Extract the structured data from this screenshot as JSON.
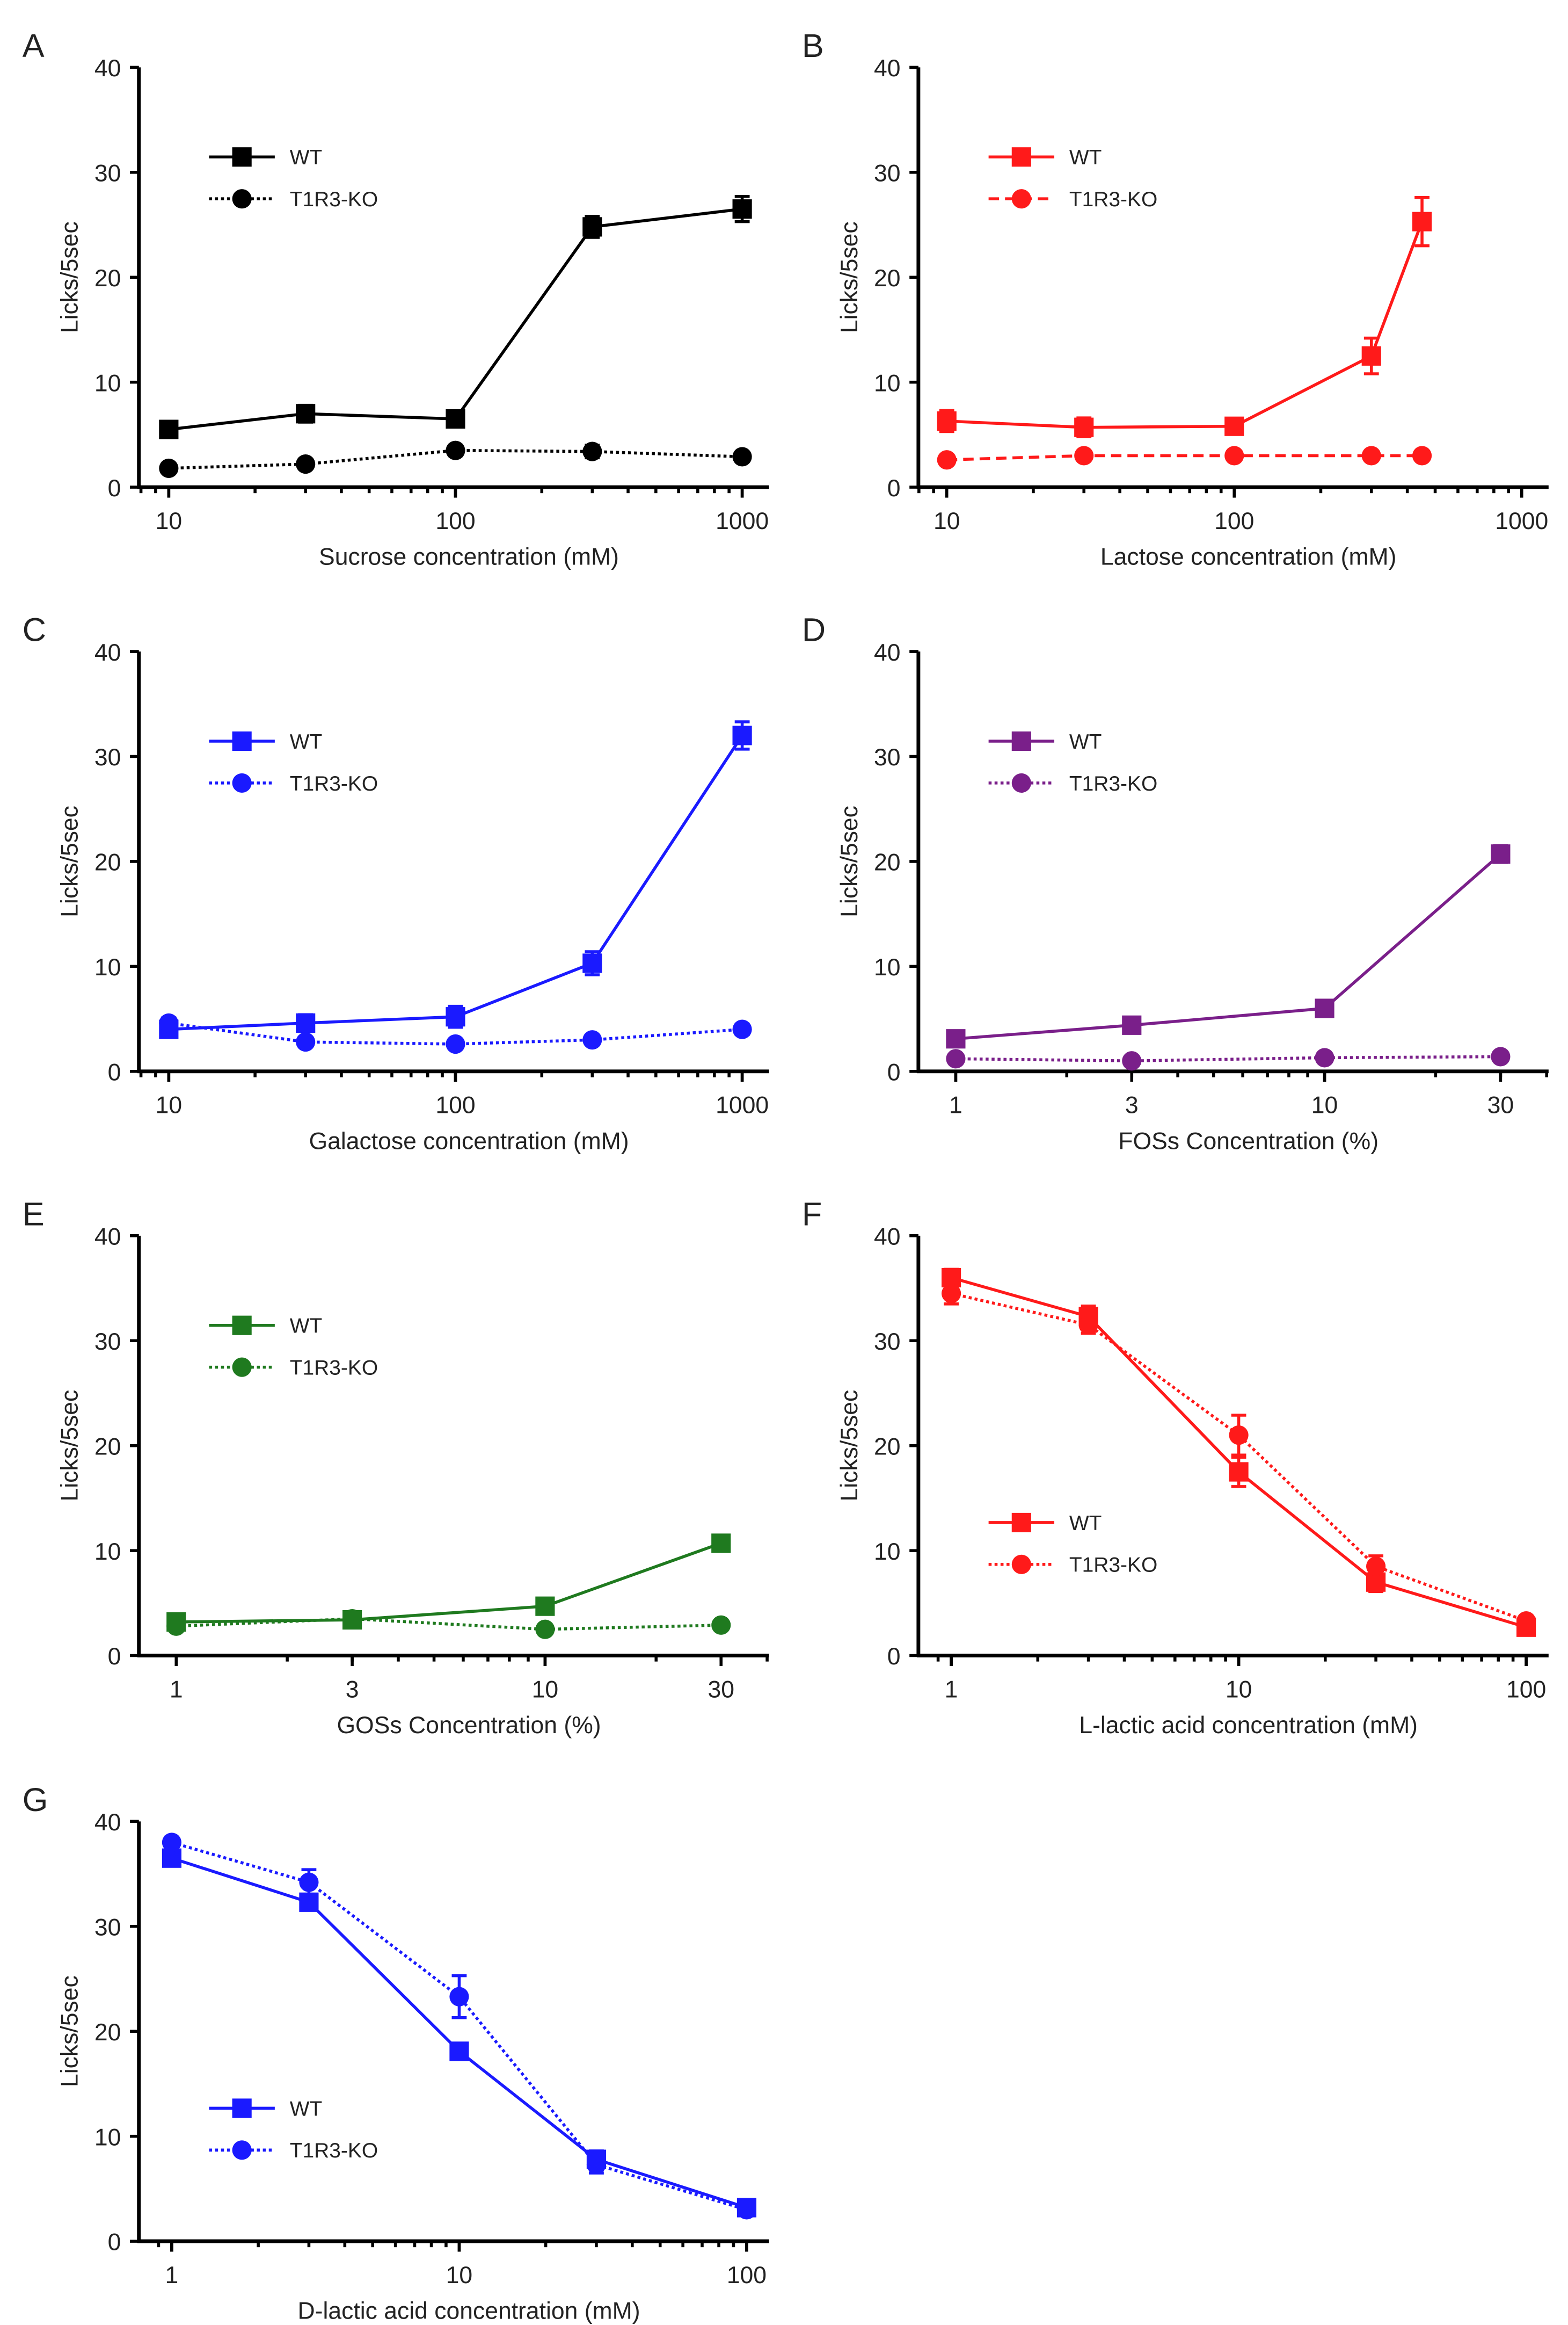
{
  "chart_data": [
    {
      "type": "line",
      "letter": "A",
      "color": "#000000",
      "ko_style": "dotted",
      "xscale": "log",
      "xlim": [
        8,
        1200
      ],
      "ylim": [
        0,
        40
      ],
      "xticks": [
        10,
        100,
        1000
      ],
      "xtick_labels": [
        "10",
        "100",
        "1000"
      ],
      "yticks": [
        0,
        10,
        20,
        30,
        40
      ],
      "ytick_labels": [
        "0",
        "10",
        "20",
        "30",
        "40"
      ],
      "xlabel": "Sucrose concentration (mM)",
      "ylabel": "Licks/5sec",
      "legend": "upper-left",
      "x": [
        10,
        30,
        100,
        300,
        1000
      ],
      "series": [
        {
          "name": "WT",
          "marker": "square",
          "values": [
            5.5,
            7.0,
            6.5,
            24.8,
            26.5
          ],
          "err": [
            0.5,
            0.8,
            0.6,
            1.0,
            1.2
          ]
        },
        {
          "name": "T1R3-KO",
          "marker": "circle",
          "values": [
            1.8,
            2.2,
            3.5,
            3.4,
            2.9
          ],
          "err": [
            0.3,
            0.3,
            0.5,
            0.6,
            0.3
          ]
        }
      ]
    },
    {
      "type": "line",
      "letter": "B",
      "color": "#ff1a1a",
      "ko_style": "dashed",
      "xscale": "log",
      "xlim": [
        8,
        1200
      ],
      "ylim": [
        0,
        40
      ],
      "xticks": [
        10,
        100,
        1000
      ],
      "xtick_labels": [
        "10",
        "100",
        "1000"
      ],
      "yticks": [
        0,
        10,
        20,
        30,
        40
      ],
      "ytick_labels": [
        "0",
        "10",
        "20",
        "30",
        "40"
      ],
      "xlabel": "Lactose concentration (mM)",
      "ylabel": "Licks/5sec",
      "legend": "upper-left",
      "x": [
        10,
        30,
        100,
        300,
        450
      ],
      "series": [
        {
          "name": "WT",
          "marker": "square",
          "values": [
            6.3,
            5.7,
            5.8,
            12.5,
            25.3
          ],
          "err": [
            1.0,
            0.9,
            0.6,
            1.7,
            2.3
          ]
        },
        {
          "name": "T1R3-KO",
          "marker": "circle",
          "values": [
            2.6,
            3.0,
            3.0,
            3.0,
            3.0
          ],
          "err": [
            0.3,
            0.3,
            0.3,
            0.3,
            0.3
          ]
        }
      ]
    },
    {
      "type": "line",
      "letter": "C",
      "color": "#1a1aff",
      "ko_style": "dotted",
      "xscale": "log",
      "xlim": [
        8,
        1200
      ],
      "ylim": [
        0,
        40
      ],
      "xticks": [
        10,
        100,
        1000
      ],
      "xtick_labels": [
        "10",
        "100",
        "1000"
      ],
      "yticks": [
        0,
        10,
        20,
        30,
        40
      ],
      "ytick_labels": [
        "0",
        "10",
        "20",
        "30",
        "40"
      ],
      "xlabel": "Galactose concentration (mM)",
      "ylabel": "Licks/5sec",
      "legend": "upper-left",
      "x": [
        10,
        30,
        100,
        300,
        1000
      ],
      "series": [
        {
          "name": "WT",
          "marker": "square",
          "values": [
            4.0,
            4.6,
            5.2,
            10.3,
            32.0
          ],
          "err": [
            0.6,
            0.8,
            1.0,
            1.1,
            1.3
          ]
        },
        {
          "name": "T1R3-KO",
          "marker": "circle",
          "values": [
            4.6,
            2.8,
            2.6,
            3.0,
            4.0
          ],
          "err": [
            0.5,
            0.4,
            0.4,
            0.4,
            0.5
          ]
        }
      ]
    },
    {
      "type": "line",
      "letter": "D",
      "color": "#7a1f8a",
      "ko_style": "dotted",
      "xscale": "log",
      "xlim": [
        0.92,
        40
      ],
      "ylim": [
        0,
        40
      ],
      "xticks": [
        1,
        3,
        10,
        30
      ],
      "xtick_labels": [
        "1",
        "3",
        "10",
        "30"
      ],
      "yticks": [
        0,
        10,
        20,
        30,
        40
      ],
      "ytick_labels": [
        "0",
        "10",
        "20",
        "30",
        "40"
      ],
      "xlabel": "FOSs Concentration (%)",
      "ylabel": "Licks/5sec",
      "legend": "upper-left",
      "x": [
        1,
        3,
        10,
        30
      ],
      "series": [
        {
          "name": "WT",
          "marker": "square",
          "values": [
            3.1,
            4.4,
            6.0,
            20.7
          ],
          "err": [
            0.4,
            0.4,
            0.5,
            0.8
          ]
        },
        {
          "name": "T1R3-KO",
          "marker": "circle",
          "values": [
            1.2,
            1.0,
            1.3,
            1.4
          ],
          "err": [
            0.2,
            0.2,
            0.2,
            0.2
          ]
        }
      ]
    },
    {
      "type": "line",
      "letter": "E",
      "color": "#1f7a1f",
      "ko_style": "dotted",
      "xscale": "log",
      "xlim": [
        0.92,
        40
      ],
      "ylim": [
        0,
        40
      ],
      "xticks": [
        1,
        3,
        10,
        30
      ],
      "xtick_labels": [
        "1",
        "3",
        "10",
        "30"
      ],
      "yticks": [
        0,
        10,
        20,
        30,
        40
      ],
      "ytick_labels": [
        "0",
        "10",
        "20",
        "30",
        "40"
      ],
      "xlabel": "GOSs Concentration (%)",
      "ylabel": "Licks/5sec",
      "legend": "upper-left",
      "x": [
        1,
        3,
        10,
        30
      ],
      "series": [
        {
          "name": "WT",
          "marker": "square",
          "values": [
            3.2,
            3.4,
            4.7,
            10.7
          ],
          "err": [
            0.4,
            0.4,
            0.4,
            0.6
          ]
        },
        {
          "name": "T1R3-KO",
          "marker": "circle",
          "values": [
            2.8,
            3.5,
            2.5,
            2.9
          ],
          "err": [
            0.3,
            0.3,
            0.3,
            0.3
          ]
        }
      ]
    },
    {
      "type": "line",
      "letter": "F",
      "color": "#ff1a1a",
      "ko_style": "dotted",
      "xscale": "log",
      "xlim": [
        0.9,
        110
      ],
      "ylim": [
        0,
        40
      ],
      "xticks": [
        1,
        10,
        100
      ],
      "xtick_labels": [
        "1",
        "10",
        "100"
      ],
      "yticks": [
        0,
        10,
        20,
        30,
        40
      ],
      "ytick_labels": [
        "0",
        "10",
        "20",
        "30",
        "40"
      ],
      "xlabel": "L-lactic acid concentration (mM)",
      "ylabel": "Licks/5sec",
      "legend": "lower-left",
      "x": [
        1,
        3,
        10,
        30,
        100
      ],
      "series": [
        {
          "name": "WT",
          "marker": "square",
          "values": [
            36.0,
            32.3,
            17.5,
            7.0,
            2.7
          ],
          "err": [
            0.8,
            1.0,
            1.4,
            0.9,
            0.5
          ]
        },
        {
          "name": "T1R3-KO",
          "marker": "circle",
          "values": [
            34.5,
            31.5,
            21.0,
            8.5,
            3.3
          ],
          "err": [
            1.0,
            0.8,
            1.9,
            1.0,
            0.4
          ]
        }
      ]
    },
    {
      "type": "line",
      "letter": "G",
      "color": "#1a1aff",
      "ko_style": "dotted",
      "xscale": "log",
      "xlim": [
        0.9,
        110
      ],
      "ylim": [
        0,
        40
      ],
      "xticks": [
        1,
        10,
        100
      ],
      "xtick_labels": [
        "1",
        "10",
        "100"
      ],
      "yticks": [
        0,
        10,
        20,
        30,
        40
      ],
      "ytick_labels": [
        "0",
        "10",
        "20",
        "30",
        "40"
      ],
      "xlabel": "D-lactic acid concentration (mM)",
      "ylabel": "Licks/5sec",
      "legend": "lower-left",
      "x": [
        1,
        3,
        10,
        30,
        100
      ],
      "series": [
        {
          "name": "WT",
          "marker": "square",
          "values": [
            36.5,
            32.3,
            18.1,
            7.8,
            3.2
          ],
          "err": [
            0.6,
            0.7,
            0.6,
            0.8,
            0.5
          ]
        },
        {
          "name": "T1R3-KO",
          "marker": "circle",
          "values": [
            38.0,
            34.2,
            23.3,
            7.3,
            3.0
          ],
          "err": [
            0.5,
            1.2,
            2.0,
            0.8,
            0.5
          ]
        }
      ]
    }
  ]
}
